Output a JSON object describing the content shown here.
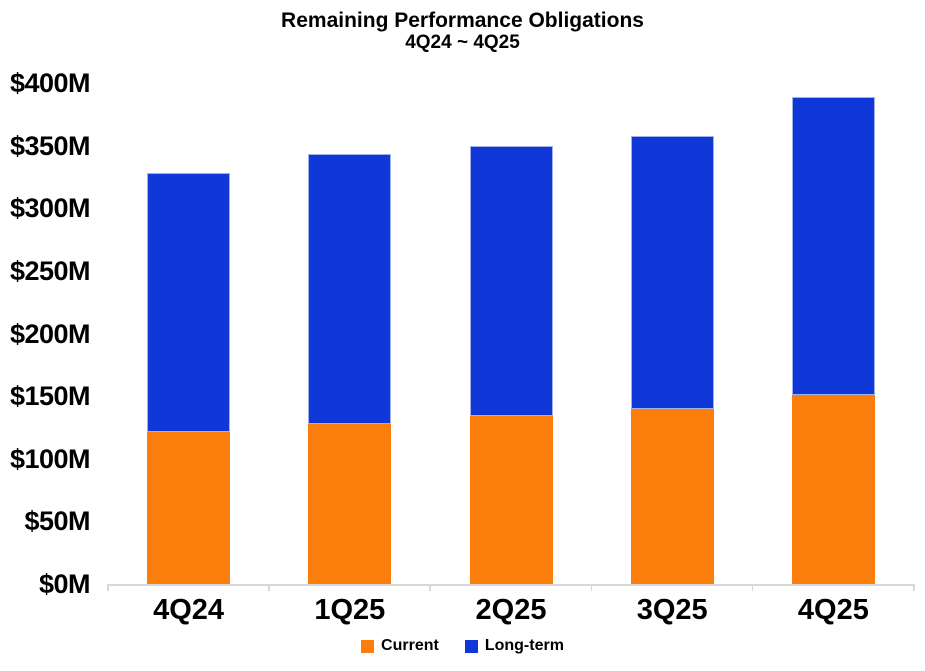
{
  "title": {
    "line1": "Remaining Performance Obligations",
    "line2": "4Q24 ~ 4Q25"
  },
  "chart_data": {
    "type": "bar",
    "stacked": true,
    "title": "Remaining Performance Obligations",
    "subtitle": "4Q24 ~ 4Q25",
    "categories": [
      "4Q24",
      "1Q25",
      "2Q25",
      "3Q25",
      "4Q25"
    ],
    "series": [
      {
        "name": "Current",
        "color": "#FB7D0B",
        "values": [
          121,
          128,
          134,
          140,
          151
        ]
      },
      {
        "name": "Long-term",
        "color": "#1038D8",
        "values": [
          207,
          215,
          216,
          218,
          238
        ]
      }
    ],
    "totals": [
      328,
      343,
      350,
      358,
      389
    ],
    "unit": "M USD",
    "ylim": [
      0,
      400
    ],
    "y_tick_step": 50,
    "y_tick_labels": [
      "$0M",
      "$50M",
      "$100M",
      "$150M",
      "$200M",
      "$250M",
      "$300M",
      "$350M",
      "$400M"
    ],
    "grid": false,
    "legend_position": "bottom",
    "axis_color": "#d8d8d8"
  }
}
